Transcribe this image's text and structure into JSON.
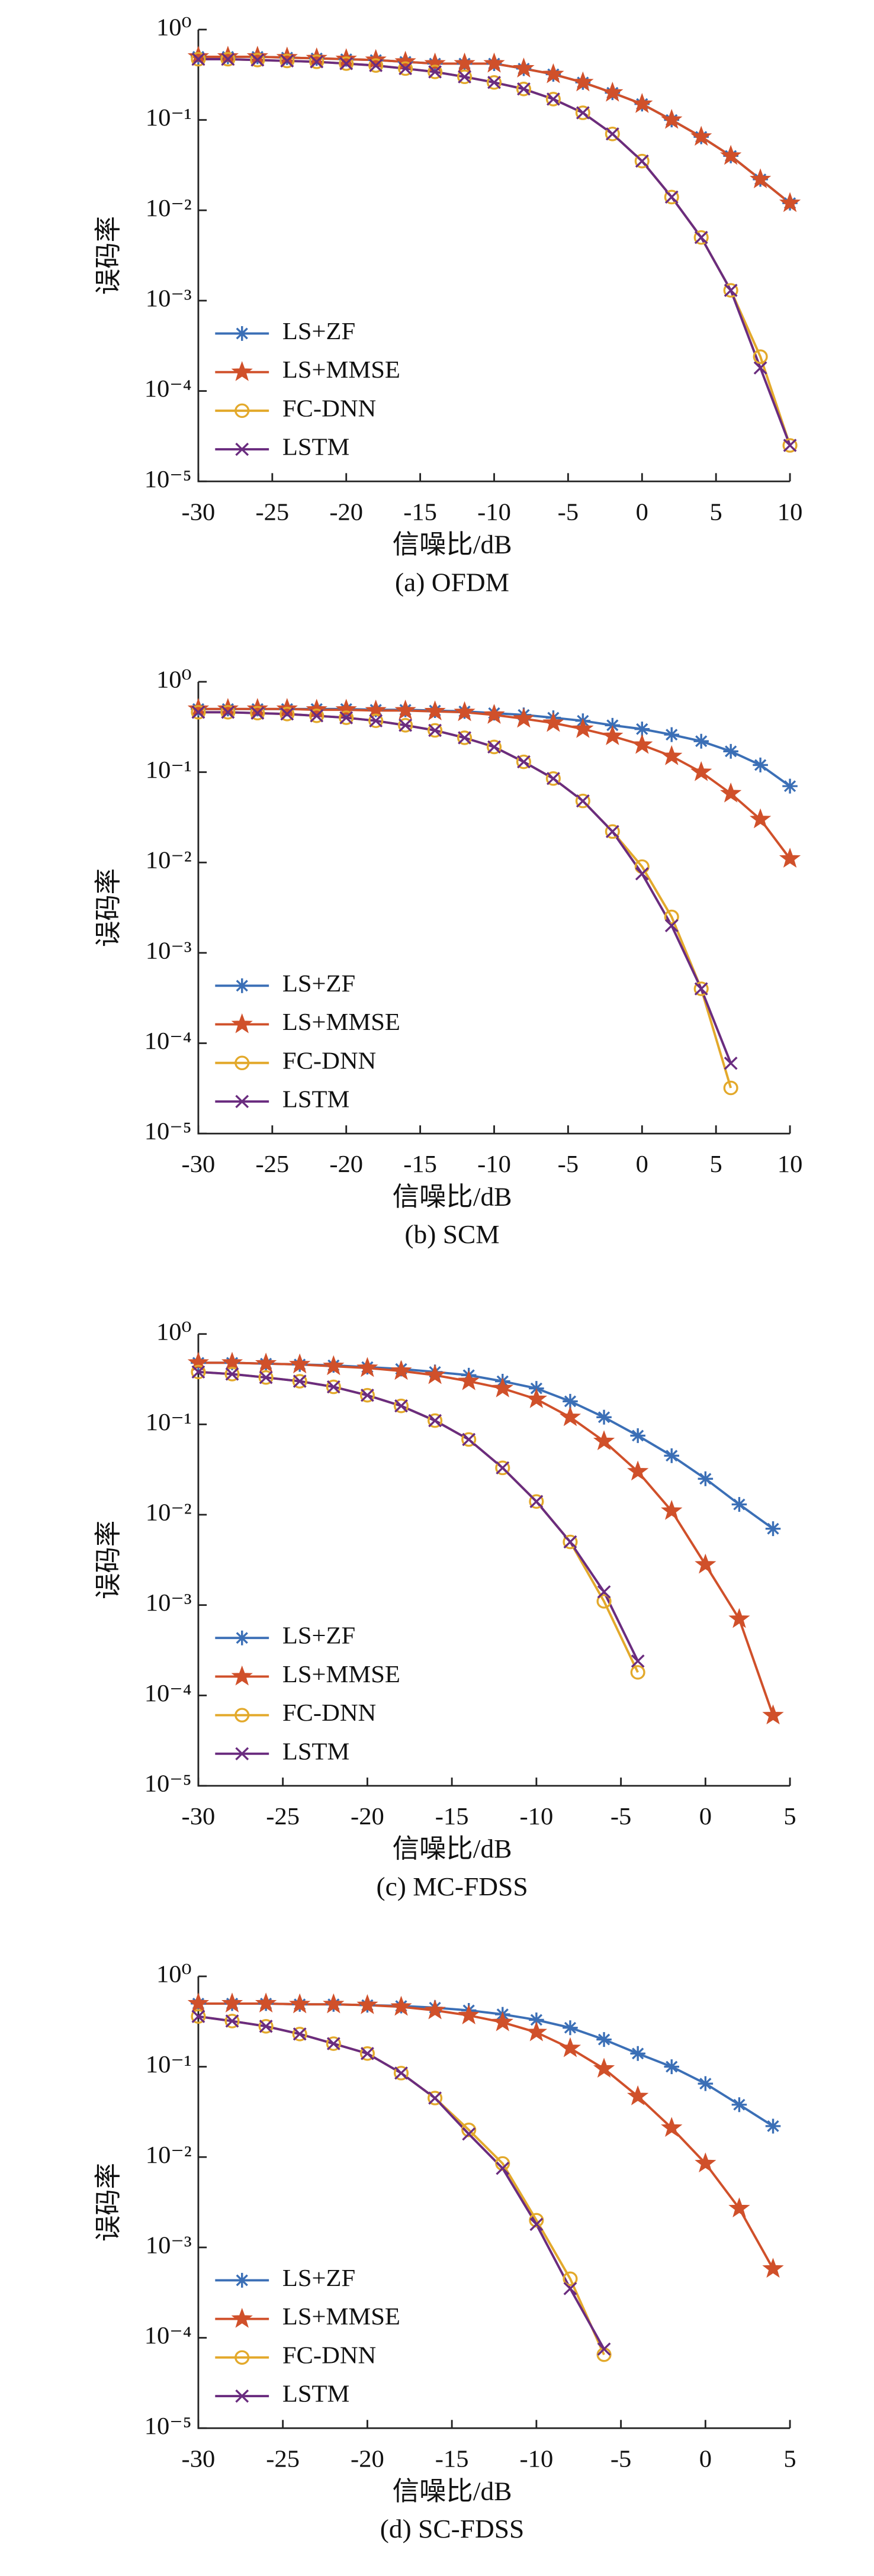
{
  "chart_data": [
    {
      "type": "line",
      "caption": "(a) OFDM",
      "x_label": "信噪比/dB",
      "y_label": "误码率",
      "log_y": true,
      "legend": "lower left",
      "x": [
        -30,
        -28,
        -26,
        -24,
        -22,
        -20,
        -18,
        -16,
        -14,
        -12,
        -10,
        -8,
        -6,
        -4,
        -2,
        0,
        2,
        4,
        6,
        8,
        10
      ],
      "xlim": [
        -30,
        10
      ],
      "xticks": [
        -30,
        -25,
        -20,
        -15,
        -10,
        -5,
        0,
        5,
        10
      ],
      "ylim": [
        1e-05,
        1
      ],
      "yticks": [
        {
          "value": 1,
          "label": "10⁰"
        },
        {
          "value": 0.1,
          "label": "10⁻¹"
        },
        {
          "value": 0.01,
          "label": "10⁻²"
        },
        {
          "value": 0.001,
          "label": "10⁻³"
        },
        {
          "value": 0.0001,
          "label": "10⁻⁴"
        },
        {
          "value": 1e-05,
          "label": "10⁻⁵"
        }
      ],
      "series": [
        {
          "name": "LS+ZF",
          "color": "#3b6fb6",
          "marker": "asterisk",
          "values": [
            0.5,
            0.5,
            0.5,
            0.49,
            0.48,
            0.47,
            0.46,
            0.44,
            0.42,
            0.42,
            0.42,
            0.37,
            0.32,
            0.26,
            0.2,
            0.15,
            0.1,
            0.065,
            0.04,
            0.022,
            0.012
          ]
        },
        {
          "name": "LS+MMSE",
          "color": "#d0502a",
          "marker": "star",
          "values": [
            0.5,
            0.5,
            0.5,
            0.49,
            0.48,
            0.47,
            0.46,
            0.44,
            0.42,
            0.42,
            0.42,
            0.37,
            0.32,
            0.26,
            0.2,
            0.15,
            0.1,
            0.065,
            0.04,
            0.022,
            0.012
          ]
        },
        {
          "name": "FC-DNN",
          "color": "#e3a92b",
          "marker": "circle",
          "values": [
            0.47,
            0.47,
            0.46,
            0.45,
            0.44,
            0.42,
            0.4,
            0.37,
            0.34,
            0.3,
            0.26,
            0.22,
            0.17,
            0.12,
            0.07,
            0.035,
            0.014,
            0.005,
            0.0013,
            0.00024,
            2.5e-05
          ]
        },
        {
          "name": "LSTM",
          "color": "#6a2c7f",
          "marker": "x",
          "values": [
            0.47,
            0.47,
            0.46,
            0.45,
            0.44,
            0.42,
            0.4,
            0.37,
            0.34,
            0.3,
            0.26,
            0.22,
            0.17,
            0.12,
            0.07,
            0.035,
            0.014,
            0.005,
            0.0013,
            0.00018,
            2.5e-05
          ]
        }
      ]
    },
    {
      "type": "line",
      "caption": "(b) SCM",
      "x_label": "信噪比/dB",
      "y_label": "误码率",
      "log_y": true,
      "legend": "lower left",
      "x": [
        -30,
        -28,
        -26,
        -24,
        -22,
        -20,
        -18,
        -16,
        -14,
        -12,
        -10,
        -8,
        -6,
        -4,
        -2,
        0,
        2,
        4,
        6,
        8,
        10
      ],
      "xlim": [
        -30,
        10
      ],
      "xticks": [
        -30,
        -25,
        -20,
        -15,
        -10,
        -5,
        0,
        5,
        10
      ],
      "ylim": [
        1e-05,
        1
      ],
      "yticks": [
        {
          "value": 1,
          "label": "10⁰"
        },
        {
          "value": 0.1,
          "label": "10⁻¹"
        },
        {
          "value": 0.01,
          "label": "10⁻²"
        },
        {
          "value": 0.001,
          "label": "10⁻³"
        },
        {
          "value": 0.0001,
          "label": "10⁻⁴"
        },
        {
          "value": 1e-05,
          "label": "10⁻⁵"
        }
      ],
      "series": [
        {
          "name": "LS+ZF",
          "color": "#3b6fb6",
          "marker": "asterisk",
          "values": [
            0.5,
            0.5,
            0.5,
            0.5,
            0.5,
            0.5,
            0.49,
            0.49,
            0.48,
            0.47,
            0.45,
            0.43,
            0.4,
            0.37,
            0.33,
            0.3,
            0.26,
            0.22,
            0.17,
            0.12,
            0.07
          ]
        },
        {
          "name": "LS+MMSE",
          "color": "#d0502a",
          "marker": "star",
          "values": [
            0.5,
            0.5,
            0.5,
            0.5,
            0.49,
            0.49,
            0.48,
            0.48,
            0.47,
            0.46,
            0.43,
            0.39,
            0.35,
            0.3,
            0.25,
            0.2,
            0.15,
            0.1,
            0.058,
            0.03,
            0.011
          ]
        },
        {
          "name": "FC-DNN",
          "color": "#e3a92b",
          "marker": "circle",
          "values": [
            0.46,
            0.46,
            0.45,
            0.44,
            0.42,
            0.4,
            0.37,
            0.33,
            0.29,
            0.24,
            0.19,
            0.13,
            0.085,
            0.048,
            0.022,
            0.009,
            0.0025,
            0.0004,
            3.2e-05,
            null,
            null
          ]
        },
        {
          "name": "LSTM",
          "color": "#6a2c7f",
          "marker": "x",
          "values": [
            0.46,
            0.46,
            0.45,
            0.44,
            0.42,
            0.4,
            0.37,
            0.33,
            0.29,
            0.24,
            0.19,
            0.13,
            0.085,
            0.048,
            0.022,
            0.0075,
            0.002,
            0.0004,
            6e-05,
            null,
            null
          ]
        }
      ]
    },
    {
      "type": "line",
      "caption": "(c) MC-FDSS",
      "x_label": "信噪比/dB",
      "y_label": "误码率",
      "log_y": true,
      "legend": "lower left",
      "x": [
        -30,
        -28,
        -26,
        -24,
        -22,
        -20,
        -18,
        -16,
        -14,
        -12,
        -10,
        -8,
        -6,
        -4,
        -2,
        0,
        2,
        4
      ],
      "xlim": [
        -30,
        5
      ],
      "xticks": [
        -30,
        -25,
        -20,
        -15,
        -10,
        -5,
        0,
        5
      ],
      "ylim": [
        1e-05,
        1
      ],
      "yticks": [
        {
          "value": 1,
          "label": "10⁰"
        },
        {
          "value": 0.1,
          "label": "10⁻¹"
        },
        {
          "value": 0.01,
          "label": "10⁻²"
        },
        {
          "value": 0.001,
          "label": "10⁻³"
        },
        {
          "value": 0.0001,
          "label": "10⁻⁴"
        },
        {
          "value": 1e-05,
          "label": "10⁻⁵"
        }
      ],
      "series": [
        {
          "name": "LS+ZF",
          "color": "#3b6fb6",
          "marker": "asterisk",
          "values": [
            0.48,
            0.48,
            0.47,
            0.46,
            0.45,
            0.43,
            0.41,
            0.38,
            0.35,
            0.3,
            0.25,
            0.18,
            0.12,
            0.075,
            0.045,
            0.025,
            0.013,
            0.007
          ]
        },
        {
          "name": "LS+MMSE",
          "color": "#d0502a",
          "marker": "star",
          "values": [
            0.48,
            0.48,
            0.47,
            0.46,
            0.44,
            0.42,
            0.39,
            0.35,
            0.3,
            0.25,
            0.19,
            0.12,
            0.065,
            0.03,
            0.011,
            0.0028,
            0.0007,
            6e-05
          ]
        },
        {
          "name": "FC-DNN",
          "color": "#e3a92b",
          "marker": "circle",
          "values": [
            0.38,
            0.36,
            0.33,
            0.3,
            0.26,
            0.21,
            0.16,
            0.11,
            0.068,
            0.033,
            0.014,
            0.005,
            0.0011,
            0.00018,
            null,
            null,
            null,
            null
          ]
        },
        {
          "name": "LSTM",
          "color": "#6a2c7f",
          "marker": "x",
          "values": [
            0.38,
            0.36,
            0.33,
            0.3,
            0.26,
            0.21,
            0.16,
            0.11,
            0.068,
            0.033,
            0.014,
            0.005,
            0.0014,
            0.00024,
            null,
            null,
            null,
            null
          ]
        }
      ]
    },
    {
      "type": "line",
      "caption": "(d) SC-FDSS",
      "x_label": "信噪比/dB",
      "y_label": "误码率",
      "log_y": true,
      "legend": "lower left",
      "x": [
        -30,
        -28,
        -26,
        -24,
        -22,
        -20,
        -18,
        -16,
        -14,
        -12,
        -10,
        -8,
        -6,
        -4,
        -2,
        0,
        2,
        4
      ],
      "xlim": [
        -30,
        5
      ],
      "xticks": [
        -30,
        -25,
        -20,
        -15,
        -10,
        -5,
        0,
        5
      ],
      "ylim": [
        1e-05,
        1
      ],
      "yticks": [
        {
          "value": 1,
          "label": "10⁰"
        },
        {
          "value": 0.1,
          "label": "10⁻¹"
        },
        {
          "value": 0.01,
          "label": "10⁻²"
        },
        {
          "value": 0.001,
          "label": "10⁻³"
        },
        {
          "value": 0.0001,
          "label": "10⁻⁴"
        },
        {
          "value": 1e-05,
          "label": "10⁻⁵"
        }
      ],
      "series": [
        {
          "name": "LS+ZF",
          "color": "#3b6fb6",
          "marker": "asterisk",
          "values": [
            0.5,
            0.5,
            0.5,
            0.49,
            0.49,
            0.48,
            0.47,
            0.45,
            0.42,
            0.38,
            0.33,
            0.27,
            0.2,
            0.14,
            0.1,
            0.065,
            0.038,
            0.022
          ]
        },
        {
          "name": "LS+MMSE",
          "color": "#d0502a",
          "marker": "star",
          "values": [
            0.5,
            0.5,
            0.5,
            0.49,
            0.49,
            0.48,
            0.46,
            0.42,
            0.37,
            0.31,
            0.24,
            0.16,
            0.095,
            0.047,
            0.021,
            0.0085,
            0.0027,
            0.00058
          ]
        },
        {
          "name": "FC-DNN",
          "color": "#e3a92b",
          "marker": "circle",
          "values": [
            0.36,
            0.32,
            0.28,
            0.23,
            0.18,
            0.14,
            0.085,
            0.045,
            0.02,
            0.0085,
            0.002,
            0.00045,
            6.5e-05,
            null,
            null,
            null,
            null,
            null
          ]
        },
        {
          "name": "LSTM",
          "color": "#6a2c7f",
          "marker": "x",
          "values": [
            0.36,
            0.32,
            0.28,
            0.23,
            0.18,
            0.14,
            0.085,
            0.045,
            0.018,
            0.0075,
            0.0018,
            0.00035,
            7.5e-05,
            null,
            null,
            null,
            null,
            null
          ]
        }
      ]
    }
  ]
}
